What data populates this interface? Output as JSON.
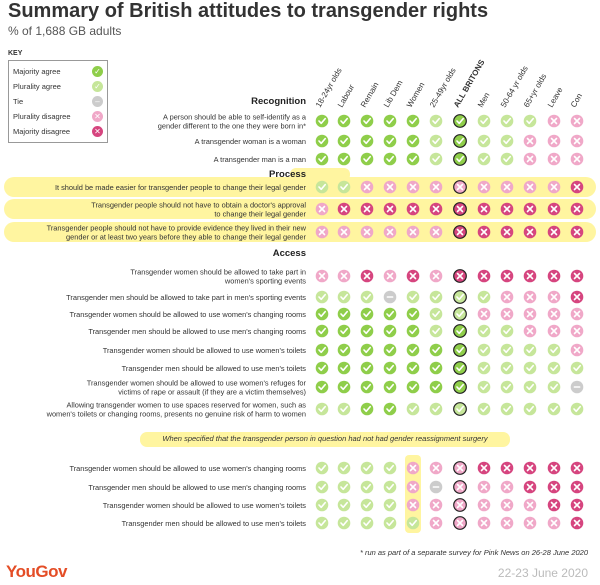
{
  "title": "Summary of British attitudes to transgender rights",
  "subtitle": "% of 1,688 GB adults",
  "key": {
    "heading": "KEY",
    "items": [
      {
        "label": "Majority agree",
        "code": "MA"
      },
      {
        "label": "Plurality agree",
        "code": "PA"
      },
      {
        "label": "Tie",
        "code": "T"
      },
      {
        "label": "Plurality disagree",
        "code": "PD"
      },
      {
        "label": "Majority disagree",
        "code": "MD"
      }
    ]
  },
  "colors": {
    "MA": "#8fce4a",
    "PA": "#c6e69a",
    "T": "#cccccc",
    "PD": "#f0a8c8",
    "MD": "#d6457f",
    "highlight": "#fff5a0"
  },
  "chart_data": {
    "type": "table",
    "columns": [
      "18-24yr olds",
      "Labour",
      "Remain",
      "Lib Dem",
      "Women",
      "25-49yr olds",
      "ALL BRITONS",
      "Men",
      "50-64 yr olds",
      "65+yr olds",
      "Leave",
      "Con"
    ],
    "sections": [
      {
        "name": "Recognition",
        "rows": [
          {
            "label": "A person should be able to self-identify as a gender different to the one they were born in*",
            "values": [
              "MA",
              "MA",
              "MA",
              "MA",
              "MA",
              "PA",
              "MA",
              "PA",
              "PA",
              "PA",
              "PD",
              "PD"
            ]
          },
          {
            "label": "A transgender woman is a woman",
            "values": [
              "MA",
              "MA",
              "MA",
              "MA",
              "MA",
              "PA",
              "MA",
              "PA",
              "PA",
              "PD",
              "PD",
              "PD"
            ]
          },
          {
            "label": "A transgender man is a man",
            "values": [
              "MA",
              "MA",
              "MA",
              "MA",
              "MA",
              "PA",
              "MA",
              "PA",
              "PA",
              "PD",
              "PD",
              "PD"
            ]
          }
        ]
      },
      {
        "name": "Process",
        "rows": [
          {
            "label": "It should be made easier for transgender people to change their legal gender",
            "values": [
              "PA",
              "PA",
              "PD",
              "PD",
              "PD",
              "PD",
              "PD",
              "PD",
              "PD",
              "PD",
              "PD",
              "MD"
            ]
          },
          {
            "label": "Transgender people should not have to obtain a doctor's approval to change their legal gender",
            "values": [
              "PD",
              "MD",
              "MD",
              "MD",
              "MD",
              "MD",
              "MD",
              "MD",
              "MD",
              "MD",
              "MD",
              "MD"
            ]
          },
          {
            "label": "Transgender people should not have to provide evidence they lived in their new gender or at least two years before they able to change their legal gender",
            "values": [
              "PD",
              "PD",
              "PD",
              "PD",
              "PD",
              "PD",
              "MD",
              "MD",
              "MD",
              "MD",
              "MD",
              "MD"
            ]
          }
        ]
      },
      {
        "name": "Access",
        "rows": [
          {
            "label": "Transgender women should be allowed to take part in women's sporting events",
            "values": [
              "PD",
              "PD",
              "MD",
              "PD",
              "MD",
              "PD",
              "MD",
              "MD",
              "MD",
              "MD",
              "MD",
              "MD"
            ]
          },
          {
            "label": "Transgender men should be allowed to take part in men's sporting events",
            "values": [
              "PA",
              "PA",
              "PA",
              "T",
              "PA",
              "PA",
              "PA",
              "PA",
              "PD",
              "PD",
              "PD",
              "MD"
            ]
          },
          {
            "label": "Transgender women should be allowed to use women's changing rooms",
            "values": [
              "MA",
              "MA",
              "MA",
              "MA",
              "MA",
              "PA",
              "PA",
              "PD",
              "PD",
              "PD",
              "PD",
              "PD"
            ]
          },
          {
            "label": "Transgender men should be allowed to use men's changing rooms",
            "values": [
              "MA",
              "MA",
              "MA",
              "MA",
              "MA",
              "PA",
              "MA",
              "PA",
              "PA",
              "PD",
              "PD",
              "PD"
            ]
          },
          {
            "label": "Transgender women should be allowed to use women's toilets",
            "values": [
              "MA",
              "MA",
              "MA",
              "MA",
              "MA",
              "MA",
              "MA",
              "PA",
              "PA",
              "PA",
              "PA",
              "PD"
            ]
          },
          {
            "label": "Transgender men should be allowed to use men's toilets",
            "values": [
              "MA",
              "MA",
              "MA",
              "MA",
              "MA",
              "MA",
              "MA",
              "PA",
              "PA",
              "PA",
              "PA",
              "PA"
            ]
          },
          {
            "label": "Transgender women should be allowed to use women's refuges for victims of rape or assault (if they are a victim themselves)",
            "values": [
              "MA",
              "MA",
              "MA",
              "MA",
              "MA",
              "MA",
              "MA",
              "PA",
              "PA",
              "PA",
              "PA",
              "T"
            ]
          },
          {
            "label": "Allowing transgender women to use spaces reserved for women, such as women's toilets or changing rooms, presents no genuine risk of harm to women",
            "values": [
              "PA",
              "PA",
              "MA",
              "MA",
              "PA",
              "PA",
              "PA",
              "PA",
              "PA",
              "PA",
              "PA",
              "PA"
            ]
          }
        ]
      },
      {
        "name": "When specified that the transgender person in question had not had gender reassignment surgery",
        "rows": [
          {
            "label": "Transgender women should be allowed to use women's changing rooms",
            "values": [
              "PA",
              "PA",
              "PA",
              "PA",
              "PD",
              "PD",
              "PD",
              "MD",
              "MD",
              "MD",
              "MD",
              "MD"
            ]
          },
          {
            "label": "Transgender men should be allowed to use men's changing rooms",
            "values": [
              "PA",
              "PA",
              "PA",
              "PA",
              "PD",
              "T",
              "PD",
              "PD",
              "PD",
              "MD",
              "MD",
              "MD"
            ]
          },
          {
            "label": "Transgender women should be allowed to use women's toilets",
            "values": [
              "PA",
              "PA",
              "PA",
              "PA",
              "PD",
              "PD",
              "PD",
              "PD",
              "PD",
              "PD",
              "MD",
              "MD"
            ]
          },
          {
            "label": "Transgender men should be allowed to use men's toilets",
            "values": [
              "PA",
              "PA",
              "PA",
              "PA",
              "PA",
              "PD",
              "PD",
              "PD",
              "PD",
              "PD",
              "PD",
              "MD"
            ]
          }
        ]
      }
    ]
  },
  "footnote": "* run as part of a separate survey for Pink News on 26-28 June 2020",
  "brand": "YouGov",
  "date": "22-23 June 2020"
}
